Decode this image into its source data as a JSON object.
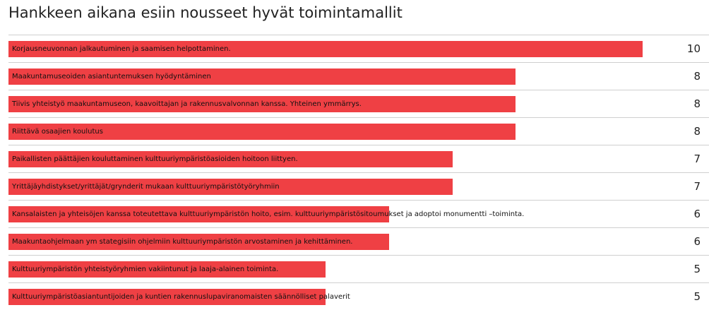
{
  "chart_data": {
    "type": "bar",
    "orientation": "horizontal",
    "title": "Hankkeen aikana esiin nousseet hyvät toimintamallit",
    "xlim": [
      0,
      10
    ],
    "bar_color": "#ef4044",
    "grid": false,
    "categories": [
      "Korjausneuvonnan jalkautuminen ja saamisen helpottaminen.",
      "Maakuntamuseoiden asiantuntemuksen hyödyntäminen",
      "Tiivis yhteistyö maakuntamuseon, kaavoittajan ja rakennusvalvonnan kanssa. Yhteinen ymmärrys.",
      "Riittävä osaajien koulutus",
      "Paikallisten päättäjien kouluttaminen kulttuuriympäristöasioiden hoitoon liittyen.",
      "Yrittäjäyhdistykset/yrittäjät/grynderit mukaan kulttuuriympäristötyöryhmiin",
      "Kansalaisten ja yhteisöjen kanssa toteutettava kulttuuriympäristön hoito, esim. kulttuuriympäristösitoumukset ja adoptoi monumentti –toiminta.",
      "Maakuntaohjelmaan ym stategisiin ohjelmiin kulttuuriympäristön arvostaminen ja kehittäminen.",
      "Kulttuuriympäristön yhteistyöryhmien vakiintunut ja laaja-alainen toiminta.",
      "Kulttuuriympäristöasiantuntijoiden ja kuntien rakennuslupaviranomaisten säännölliset palaverit"
    ],
    "values": [
      10,
      8,
      8,
      8,
      7,
      7,
      6,
      6,
      5,
      5
    ]
  }
}
